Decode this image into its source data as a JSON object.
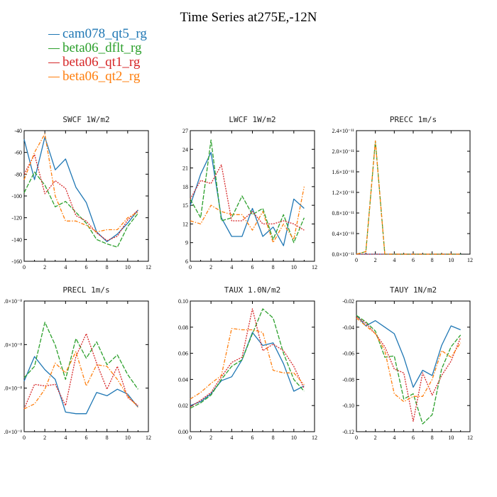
{
  "title": "Time Series at275E,-12N",
  "legend": [
    {
      "label": "cam078_qt5_rg",
      "color": "#1f77b4"
    },
    {
      "label": "beta06_dflt_rg",
      "color": "#2ca02c"
    },
    {
      "label": "beta06_qt1_rg",
      "color": "#d62728"
    },
    {
      "label": "beta06_qt2_rg",
      "color": "#ff7f0e"
    }
  ],
  "chart_data": [
    {
      "type": "line",
      "title": "SWCF   1W/m2",
      "x": [
        0,
        1,
        2,
        3,
        4,
        5,
        6,
        7,
        8,
        9,
        10,
        11
      ],
      "xlim": [
        0,
        12
      ],
      "xticks": [
        "0",
        "2",
        "4",
        "6",
        "8",
        "10",
        "12"
      ],
      "ylim": [
        -160,
        -40
      ],
      "yticks": [
        "-160",
        "-140",
        "-120",
        "-100",
        "-80",
        "-60",
        "-40"
      ],
      "series": [
        {
          "name": "cam078_qt5_rg",
          "values": [
            -48,
            -85,
            -46,
            -76,
            -66,
            -92,
            -106,
            -133,
            -142,
            -135,
            -125,
            -113
          ]
        },
        {
          "name": "beta06_dflt_rg",
          "values": [
            -97,
            -78,
            -90,
            -110,
            -105,
            -115,
            -125,
            -140,
            -144,
            -147,
            -128,
            -116
          ]
        },
        {
          "name": "beta06_qt1_rg",
          "values": [
            -80,
            -62,
            -98,
            -86,
            -93,
            -118,
            -123,
            -134,
            -141,
            -137,
            -122,
            -113
          ]
        },
        {
          "name": "beta06_qt2_rg",
          "values": [
            -85,
            -60,
            -43,
            -100,
            -123,
            -123,
            -127,
            -133,
            -131,
            -131,
            -120,
            -115
          ]
        }
      ]
    },
    {
      "type": "line",
      "title": "LWCF   1W/m2",
      "x": [
        0,
        1,
        2,
        3,
        4,
        5,
        6,
        7,
        8,
        9,
        10,
        11
      ],
      "xlim": [
        0,
        12
      ],
      "xticks": [
        "0",
        "2",
        "4",
        "6",
        "8",
        "10",
        "12"
      ],
      "ylim": [
        6,
        27
      ],
      "yticks": [
        "6",
        "9",
        "12",
        "15",
        "18",
        "21",
        "24",
        "27"
      ],
      "series": [
        {
          "name": "cam078_qt5_rg",
          "values": [
            15,
            20,
            23.5,
            13,
            10,
            10,
            14.5,
            10,
            11.5,
            8.5,
            16,
            14.5
          ]
        },
        {
          "name": "beta06_dflt_rg",
          "values": [
            16,
            13,
            25.5,
            12.5,
            13,
            16.5,
            13.5,
            14.5,
            9.5,
            13.5,
            9,
            13
          ]
        },
        {
          "name": "beta06_qt1_rg",
          "values": [
            16,
            19,
            18.5,
            21.5,
            12.5,
            12.5,
            14,
            12,
            12,
            12.5,
            12,
            11
          ]
        },
        {
          "name": "beta06_qt2_rg",
          "values": [
            12.5,
            12,
            15,
            14,
            13.5,
            13.5,
            11,
            14,
            9,
            12,
            9.5,
            18
          ]
        }
      ]
    },
    {
      "type": "line",
      "title": "PRECC   1m/s",
      "x": [
        0,
        1,
        2,
        3,
        4,
        5,
        6,
        7,
        8,
        9,
        10,
        11
      ],
      "xlim": [
        0,
        12
      ],
      "xticks": [
        "0",
        "2",
        "4",
        "6",
        "8",
        "10",
        "12"
      ],
      "ylim": [
        0,
        2.4e-11
      ],
      "yticks": [
        "0.0×10⁻¹¹",
        "0.4×10⁻¹¹",
        "0.8×10⁻¹¹",
        "1.2×10⁻¹¹",
        "1.6×10⁻¹¹",
        "2.0×10⁻¹¹",
        "2.4×10⁻¹¹"
      ],
      "series": [
        {
          "name": "cam078_qt5_rg",
          "values": [
            0,
            0,
            0,
            0,
            0,
            0,
            0,
            0,
            0,
            0,
            0,
            0
          ]
        },
        {
          "name": "beta06_dflt_rg",
          "values": [
            0,
            5e-13,
            2.2e-11,
            0,
            0,
            0,
            0,
            0,
            0,
            0,
            0,
            0
          ]
        },
        {
          "name": "beta06_qt1_rg",
          "values": [
            0,
            0,
            0,
            0,
            0,
            0,
            0,
            0,
            0,
            0,
            0,
            0
          ]
        },
        {
          "name": "beta06_qt2_rg",
          "values": [
            0,
            5e-13,
            2.2e-11,
            0,
            0,
            0,
            0,
            0,
            0,
            0,
            0,
            0
          ]
        }
      ]
    },
    {
      "type": "line",
      "title": "PRECL   1m/s",
      "x": [
        0,
        1,
        2,
        3,
        4,
        5,
        6,
        7,
        8,
        9,
        10,
        11
      ],
      "xlim": [
        0,
        12
      ],
      "xticks": [
        "0",
        "2",
        "4",
        "6",
        "8",
        "10",
        "12"
      ],
      "ylim": [
        0,
        4
      ],
      "yticks": [
        ".0×10⁻⁸",
        ".0×10⁻⁸",
        ".0×10⁻⁸",
        ".0×10⁻⁸"
      ],
      "series": [
        {
          "name": "cam078_qt5_rg",
          "values": [
            1.55,
            2.3,
            1.9,
            1.6,
            0.6,
            0.55,
            0.55,
            1.2,
            1.1,
            1.3,
            1.15,
            0.75
          ]
        },
        {
          "name": "beta06_dflt_rg",
          "values": [
            1.65,
            2.0,
            3.35,
            2.65,
            1.6,
            2.85,
            2.25,
            2.75,
            2.05,
            2.35,
            1.75,
            1.3
          ]
        },
        {
          "name": "beta06_qt1_rg",
          "values": [
            0.7,
            1.45,
            1.4,
            1.45,
            0.8,
            2.3,
            3.0,
            2.1,
            1.3,
            2.0,
            1.05,
            0.8
          ]
        },
        {
          "name": "beta06_qt2_rg",
          "values": [
            0.7,
            0.85,
            1.3,
            2.1,
            1.8,
            2.45,
            1.4,
            2.05,
            2.0,
            1.6,
            1.1,
            0.75
          ]
        }
      ]
    },
    {
      "type": "line",
      "title": "TAUX   1.0N/m2",
      "x": [
        0,
        1,
        2,
        3,
        4,
        5,
        6,
        7,
        8,
        9,
        10,
        11
      ],
      "xlim": [
        0,
        12
      ],
      "xticks": [
        "0",
        "2",
        "4",
        "6",
        "8",
        "10",
        "12"
      ],
      "ylim": [
        0,
        0.1
      ],
      "yticks": [
        "0.00",
        "0.02",
        "0.04",
        "0.06",
        "0.08",
        "0.10"
      ],
      "series": [
        {
          "name": "cam078_qt5_rg",
          "values": [
            0.02,
            0.023,
            0.029,
            0.039,
            0.042,
            0.055,
            0.076,
            0.066,
            0.068,
            0.052,
            0.031,
            0.035
          ]
        },
        {
          "name": "beta06_dflt_rg",
          "values": [
            0.018,
            0.022,
            0.028,
            0.04,
            0.05,
            0.055,
            0.075,
            0.094,
            0.087,
            0.06,
            0.04,
            0.031
          ]
        },
        {
          "name": "beta06_qt1_rg",
          "values": [
            0.019,
            0.024,
            0.03,
            0.042,
            0.053,
            0.057,
            0.094,
            0.062,
            0.067,
            0.062,
            0.05,
            0.033
          ]
        },
        {
          "name": "beta06_qt2_rg",
          "values": [
            0.025,
            0.03,
            0.037,
            0.043,
            0.079,
            0.078,
            0.078,
            0.076,
            0.047,
            0.045,
            0.045,
            0.036
          ]
        }
      ]
    },
    {
      "type": "line",
      "title": "TAUY   1N/m2",
      "x": [
        0,
        1,
        2,
        3,
        4,
        5,
        6,
        7,
        8,
        9,
        10,
        11
      ],
      "xlim": [
        0,
        12
      ],
      "xticks": [
        "0",
        "2",
        "4",
        "6",
        "8",
        "10",
        "12"
      ],
      "ylim": [
        -0.12,
        -0.02
      ],
      "yticks": [
        "-0.12",
        "-0.10",
        "-0.08",
        "-0.06",
        "-0.04",
        "-0.02"
      ],
      "series": [
        {
          "name": "cam078_qt5_rg",
          "values": [
            -0.031,
            -0.039,
            -0.035,
            -0.04,
            -0.045,
            -0.063,
            -0.086,
            -0.073,
            -0.077,
            -0.054,
            -0.039,
            -0.042
          ]
        },
        {
          "name": "beta06_dflt_rg",
          "values": [
            -0.031,
            -0.036,
            -0.043,
            -0.063,
            -0.062,
            -0.095,
            -0.091,
            -0.114,
            -0.107,
            -0.072,
            -0.055,
            -0.046
          ]
        },
        {
          "name": "beta06_qt1_rg",
          "values": [
            -0.032,
            -0.037,
            -0.045,
            -0.055,
            -0.072,
            -0.075,
            -0.112,
            -0.075,
            -0.092,
            -0.077,
            -0.066,
            -0.048
          ]
        },
        {
          "name": "beta06_qt2_rg",
          "values": [
            -0.033,
            -0.039,
            -0.045,
            -0.058,
            -0.091,
            -0.097,
            -0.093,
            -0.093,
            -0.08,
            -0.058,
            -0.063,
            -0.052
          ]
        }
      ]
    }
  ]
}
